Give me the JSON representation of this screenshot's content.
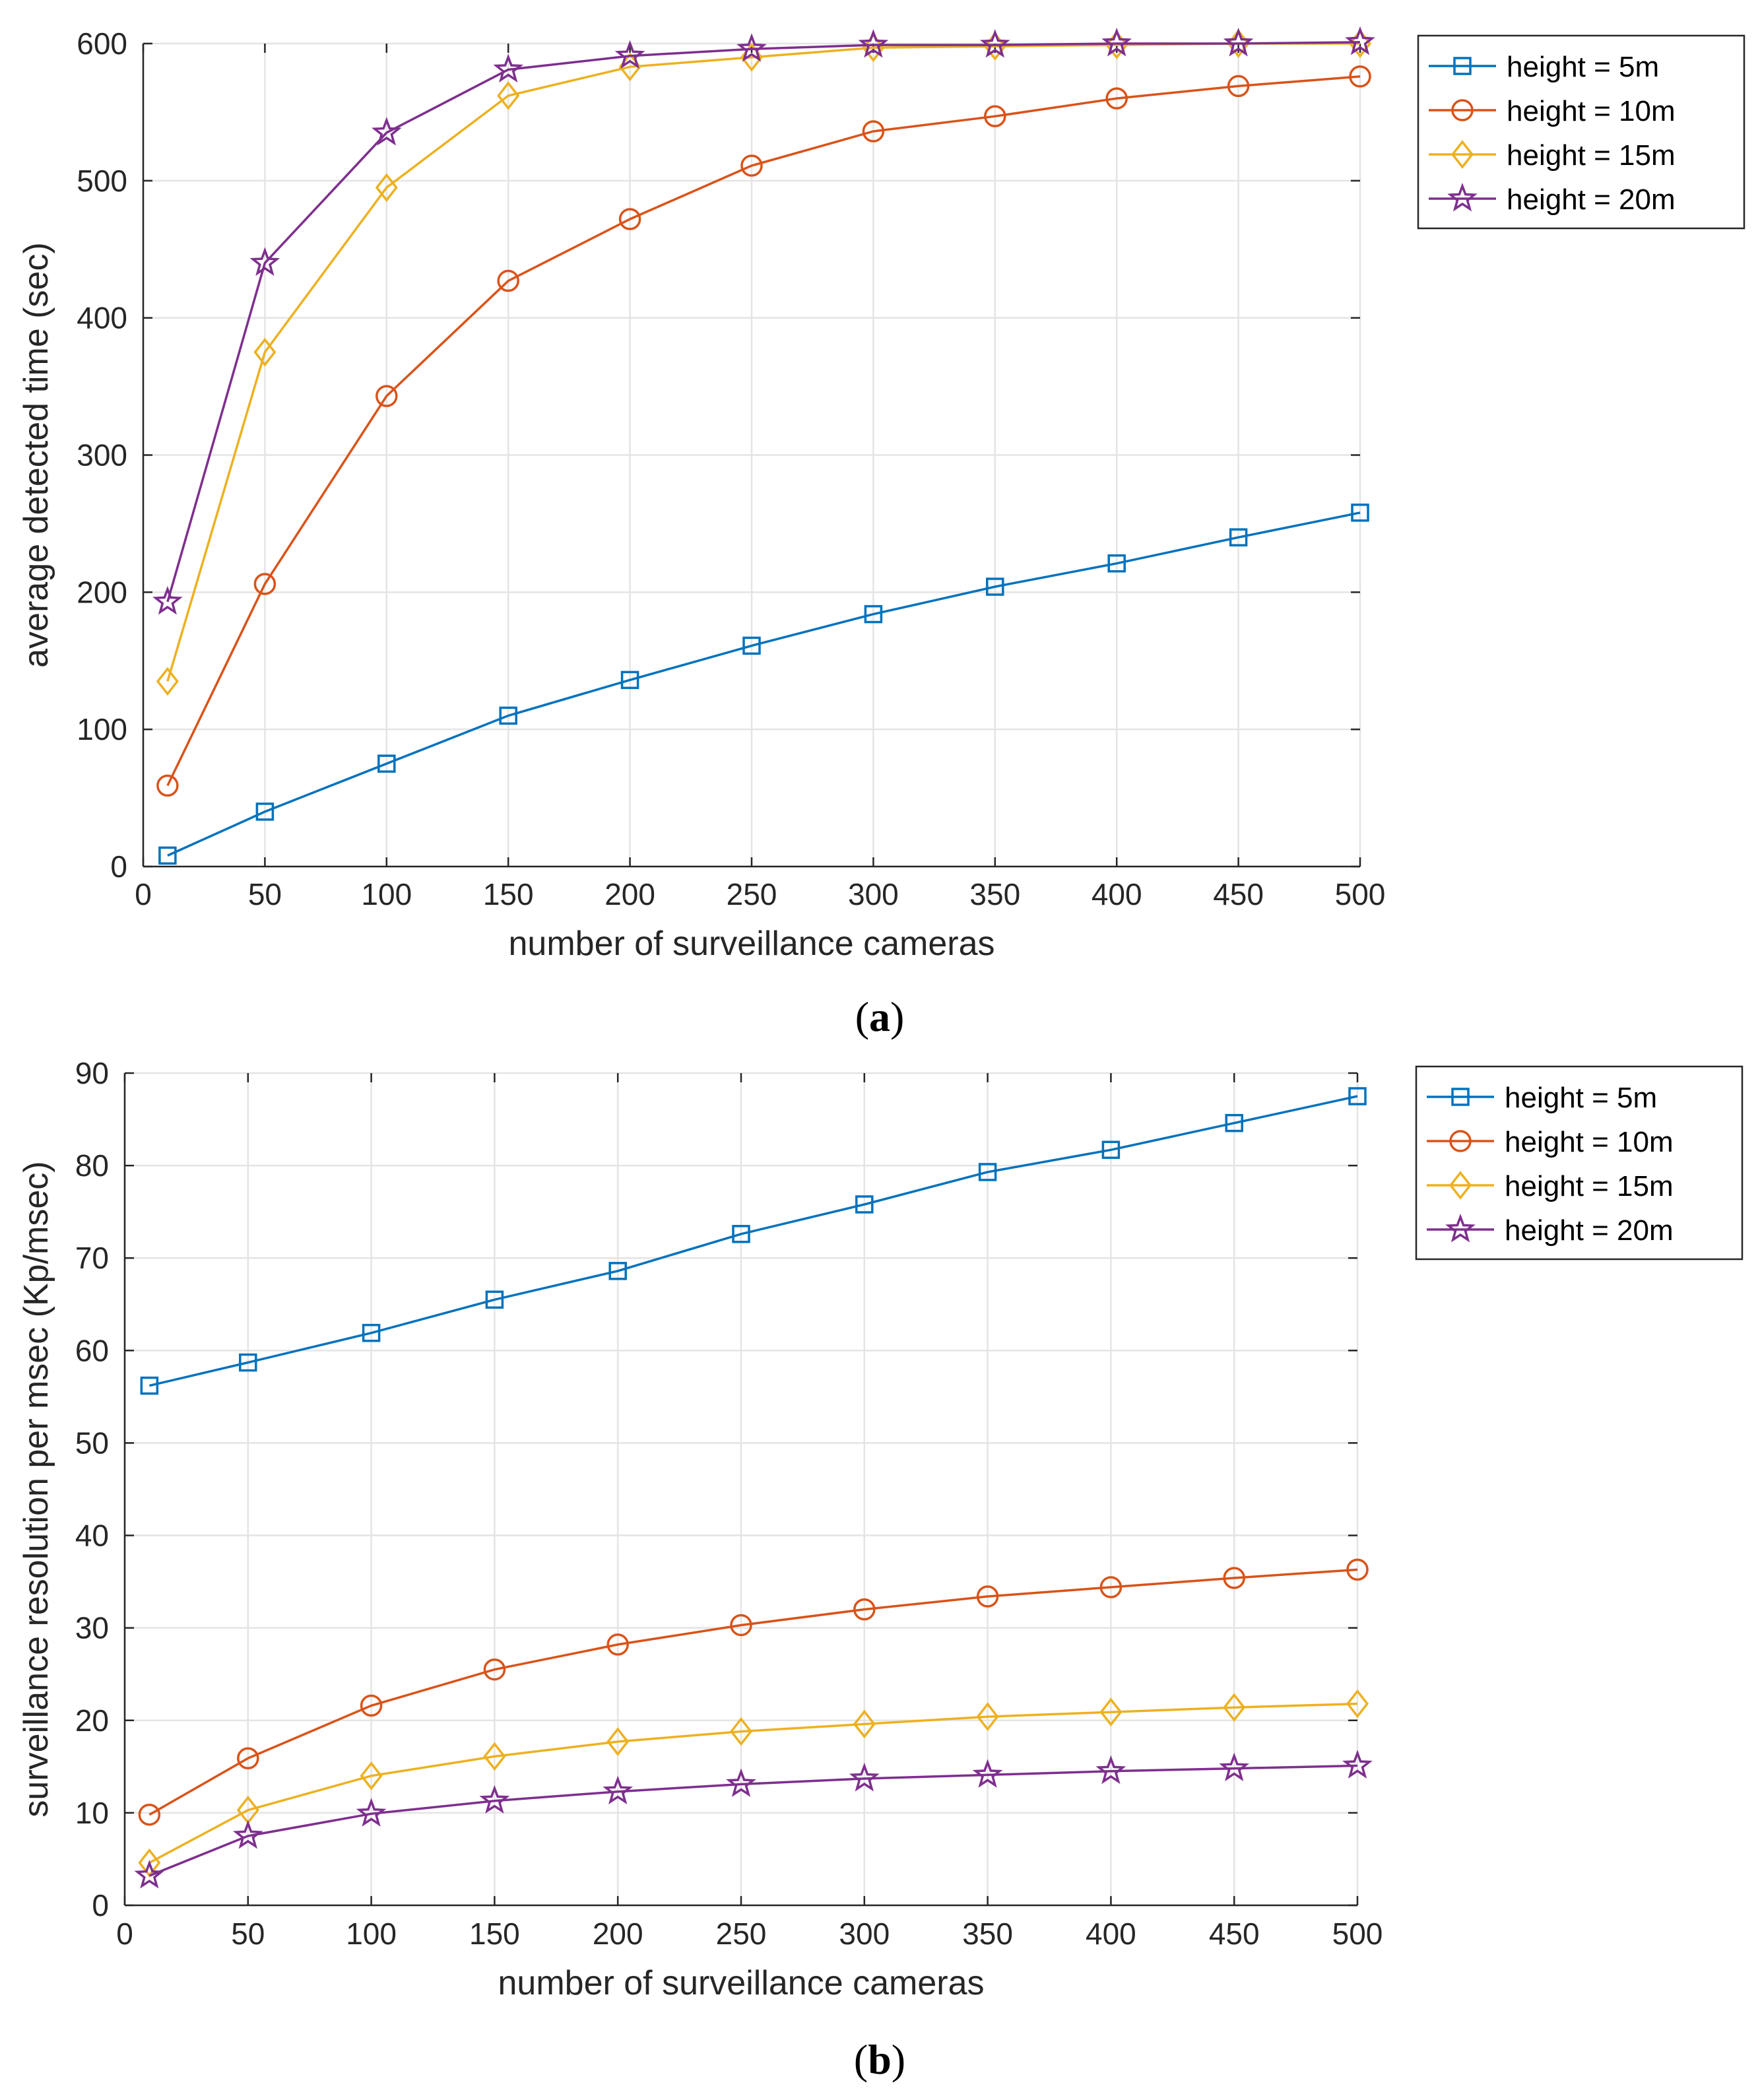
{
  "chart_data": [
    {
      "type": "line",
      "id": "a",
      "caption_letter": "a",
      "xlabel": "number of surveillance cameras",
      "ylabel": "average detected time (sec)",
      "xlim": [
        0,
        500
      ],
      "ylim": [
        0,
        600
      ],
      "xticks": [
        0,
        50,
        100,
        150,
        200,
        250,
        300,
        350,
        400,
        450,
        500
      ],
      "yticks": [
        0,
        100,
        200,
        300,
        400,
        500,
        600
      ],
      "grid": true,
      "legend_position": "outside-top-right",
      "x": [
        10,
        50,
        100,
        150,
        200,
        250,
        300,
        350,
        400,
        450,
        500
      ],
      "series": [
        {
          "name": "height = 5m",
          "color": "#0072BD",
          "marker": "square",
          "values": [
            8,
            40,
            75,
            110,
            136,
            161,
            184,
            204,
            221,
            240,
            258
          ]
        },
        {
          "name": "height = 10m",
          "color": "#D95319",
          "marker": "circle",
          "values": [
            59,
            206,
            343,
            427,
            472,
            511,
            536,
            547,
            560,
            569,
            576
          ]
        },
        {
          "name": "height = 15m",
          "color": "#EDB120",
          "marker": "diamond",
          "values": [
            135,
            375,
            495,
            562,
            583,
            590,
            597,
            598,
            599,
            600,
            600
          ]
        },
        {
          "name": "height = 20m",
          "color": "#7E2F8E",
          "marker": "star",
          "values": [
            193,
            440,
            535,
            581,
            591,
            596,
            599,
            599,
            600,
            600,
            601
          ]
        }
      ]
    },
    {
      "type": "line",
      "id": "b",
      "caption_letter": "b",
      "xlabel": "number of surveillance cameras",
      "ylabel": "surveillance resolution per msec (Kp/msec)",
      "xlim": [
        0,
        500
      ],
      "ylim": [
        0,
        90
      ],
      "xticks": [
        0,
        50,
        100,
        150,
        200,
        250,
        300,
        350,
        400,
        450,
        500
      ],
      "yticks": [
        0,
        10,
        20,
        30,
        40,
        50,
        60,
        70,
        80,
        90
      ],
      "grid": true,
      "legend_position": "outside-top-right",
      "x": [
        10,
        50,
        100,
        150,
        200,
        250,
        300,
        350,
        400,
        450,
        500
      ],
      "series": [
        {
          "name": "height = 5m",
          "color": "#0072BD",
          "marker": "square",
          "values": [
            56.2,
            58.7,
            61.9,
            65.5,
            68.6,
            72.6,
            75.8,
            79.3,
            81.7,
            84.6,
            87.5
          ]
        },
        {
          "name": "height = 10m",
          "color": "#D95319",
          "marker": "circle",
          "values": [
            9.8,
            15.9,
            21.6,
            25.5,
            28.2,
            30.3,
            32.0,
            33.4,
            34.4,
            35.4,
            36.3
          ]
        },
        {
          "name": "height = 15m",
          "color": "#EDB120",
          "marker": "diamond",
          "values": [
            4.6,
            10.3,
            14.0,
            16.1,
            17.7,
            18.8,
            19.6,
            20.4,
            20.9,
            21.4,
            21.8
          ]
        },
        {
          "name": "height = 20m",
          "color": "#7E2F8E",
          "marker": "star",
          "values": [
            3.2,
            7.5,
            9.9,
            11.3,
            12.3,
            13.1,
            13.7,
            14.1,
            14.5,
            14.8,
            15.1
          ]
        }
      ]
    }
  ]
}
